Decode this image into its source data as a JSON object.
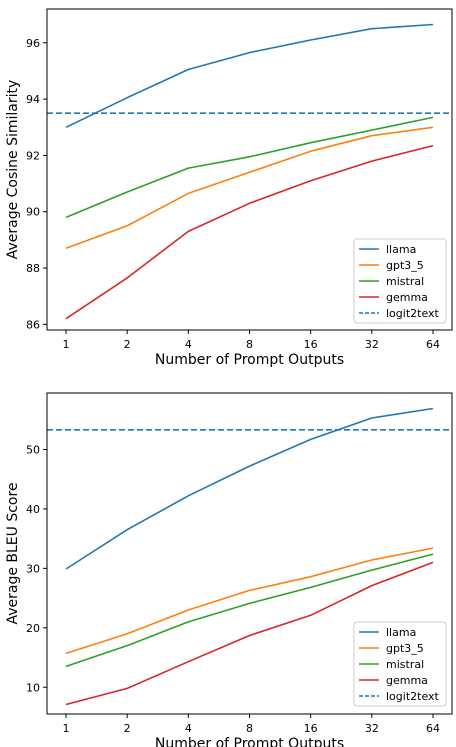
{
  "chart_data": [
    {
      "type": "line",
      "x": [
        "1",
        "2",
        "4",
        "8",
        "16",
        "32",
        "64"
      ],
      "xlabel": "Number of Prompt Outputs",
      "ylabel": "Average Cosine Similarity",
      "ylim": [
        85.8,
        97.2
      ],
      "yticks": [
        86,
        88,
        90,
        92,
        94,
        96
      ],
      "legend_position": "lower-right",
      "series": [
        {
          "name": "llama",
          "color": "#1f77b4",
          "values": [
            93.0,
            94.05,
            95.05,
            95.65,
            96.1,
            96.5,
            96.65
          ]
        },
        {
          "name": "gpt3_5",
          "color": "#ff7f0e",
          "values": [
            88.7,
            89.5,
            90.65,
            91.4,
            92.15,
            92.7,
            93.0
          ]
        },
        {
          "name": "mistral",
          "color": "#2ca02c",
          "values": [
            89.8,
            90.7,
            91.55,
            91.95,
            92.45,
            92.9,
            93.35
          ]
        },
        {
          "name": "gemma",
          "color": "#d62728",
          "values": [
            86.2,
            87.65,
            89.3,
            90.3,
            91.1,
            91.8,
            92.35
          ]
        }
      ],
      "reference_line": {
        "name": "logit2text",
        "color": "#1f77b4",
        "value": 93.5,
        "style": "dashed"
      }
    },
    {
      "type": "line",
      "x": [
        "1",
        "2",
        "4",
        "8",
        "16",
        "32",
        "64"
      ],
      "xlabel": "Number of Prompt Outputs",
      "ylabel": "Average BLEU Score",
      "ylim": [
        5.5,
        59.5
      ],
      "yticks": [
        10,
        20,
        30,
        40,
        50
      ],
      "legend_position": "lower-right",
      "series": [
        {
          "name": "llama",
          "color": "#1f77b4",
          "values": [
            29.9,
            36.5,
            42.2,
            47.2,
            51.7,
            55.3,
            56.9
          ]
        },
        {
          "name": "gpt3_5",
          "color": "#ff7f0e",
          "values": [
            15.7,
            19.0,
            23.0,
            26.3,
            28.6,
            31.4,
            33.4
          ]
        },
        {
          "name": "mistral",
          "color": "#2ca02c",
          "values": [
            13.5,
            17.0,
            21.0,
            24.1,
            26.8,
            29.7,
            32.4
          ]
        },
        {
          "name": "gemma",
          "color": "#d62728",
          "values": [
            7.1,
            9.8,
            14.3,
            18.7,
            22.1,
            27.1,
            31.0
          ]
        }
      ],
      "reference_line": {
        "name": "logit2text",
        "color": "#1f77b4",
        "value": 53.3,
        "style": "dashed"
      }
    }
  ]
}
